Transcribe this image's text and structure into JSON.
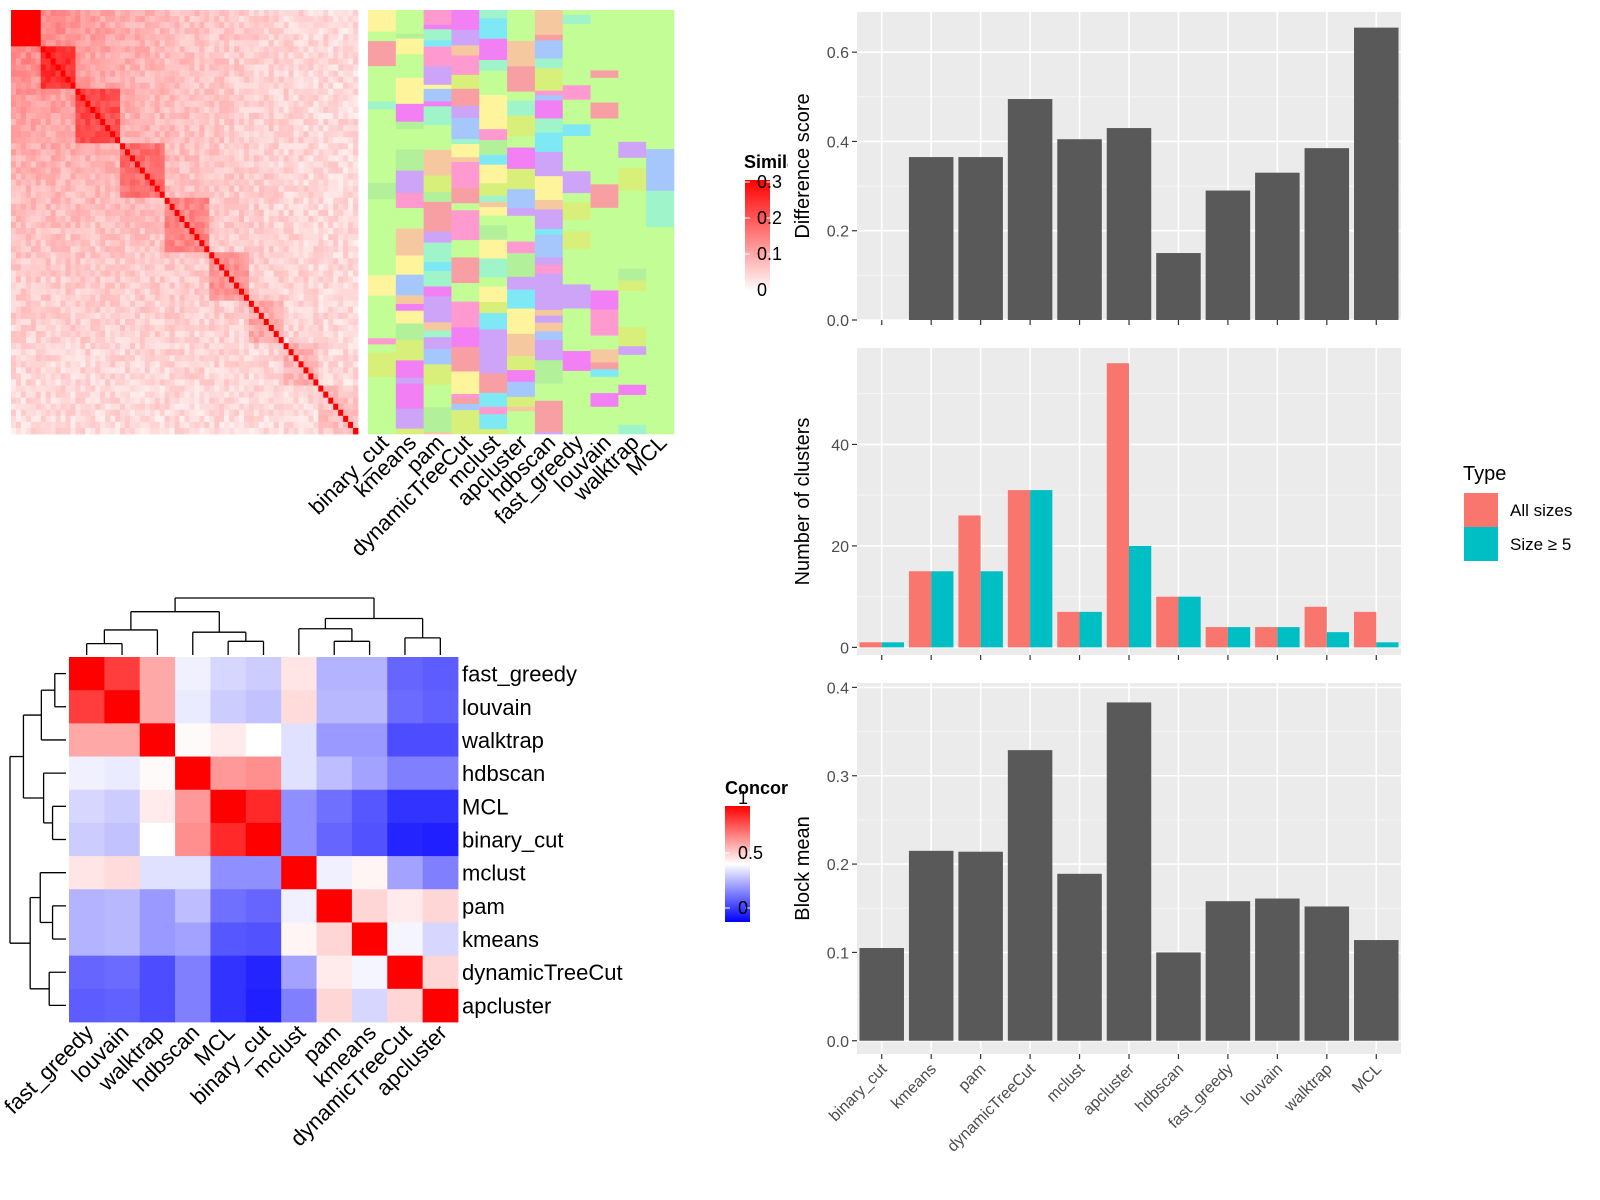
{
  "methods": [
    "binary_cut",
    "kmeans",
    "pam",
    "dynamicTreeCut",
    "mclust",
    "apcluster",
    "hdbscan",
    "fast_greedy",
    "louvain",
    "walktrap",
    "MCL"
  ],
  "similarity_legend": {
    "title": "Similarity",
    "ticks": [
      "0.3",
      "0.2",
      "0.1",
      "0"
    ]
  },
  "concordance_legend": {
    "title": "Concordance",
    "ticks": [
      "1",
      "0.5",
      "0"
    ]
  },
  "type_legend": {
    "title": "Type",
    "items": [
      "All sizes",
      "Size ≥ 5"
    ]
  },
  "colors": {
    "bar_grey": "#595959",
    "panel_bg": "#ebebeb",
    "all_sizes": "#f8766d",
    "size_ge5": "#00bfc4",
    "heat_high": "#ff0000",
    "heat_mid": "#ffffff",
    "heat_low": "#0000ff"
  },
  "chart_data": [
    {
      "type": "heatmap",
      "name": "similarity_matrix_with_cluster_labels",
      "legend_title": "Similarity",
      "range": [
        0,
        0.3
      ],
      "column_labels": [
        "binary_cut",
        "kmeans",
        "pam",
        "dynamicTreeCut",
        "mclust",
        "apcluster",
        "hdbscan",
        "fast_greedy",
        "louvain",
        "walktrap",
        "MCL"
      ]
    },
    {
      "type": "heatmap",
      "name": "concordance",
      "legend_title": "Concordance",
      "range": [
        0,
        1
      ],
      "row_labels": [
        "fast_greedy",
        "louvain",
        "walktrap",
        "hdbscan",
        "MCL",
        "binary_cut",
        "mclust",
        "pam",
        "kmeans",
        "dynamicTreeCut",
        "apcluster"
      ],
      "column_labels": [
        "fast_greedy",
        "louvain",
        "walktrap",
        "hdbscan",
        "MCL",
        "binary_cut",
        "mclust",
        "pam",
        "kmeans",
        "dynamicTreeCut",
        "apcluster"
      ],
      "values": [
        [
          1.0,
          0.88,
          0.67,
          0.47,
          0.42,
          0.4,
          0.55,
          0.35,
          0.35,
          0.2,
          0.18
        ],
        [
          0.88,
          1.0,
          0.67,
          0.46,
          0.4,
          0.38,
          0.57,
          0.36,
          0.36,
          0.21,
          0.19
        ],
        [
          0.67,
          0.67,
          1.0,
          0.51,
          0.54,
          0.5,
          0.44,
          0.3,
          0.3,
          0.15,
          0.15
        ],
        [
          0.47,
          0.46,
          0.51,
          1.0,
          0.7,
          0.72,
          0.44,
          0.37,
          0.32,
          0.25,
          0.25
        ],
        [
          0.42,
          0.4,
          0.54,
          0.7,
          1.0,
          0.92,
          0.28,
          0.22,
          0.17,
          0.1,
          0.1
        ],
        [
          0.4,
          0.38,
          0.5,
          0.72,
          0.92,
          1.0,
          0.28,
          0.2,
          0.16,
          0.07,
          0.06
        ],
        [
          0.55,
          0.57,
          0.44,
          0.44,
          0.28,
          0.28,
          1.0,
          0.47,
          0.52,
          0.32,
          0.25
        ],
        [
          0.35,
          0.36,
          0.3,
          0.37,
          0.22,
          0.2,
          0.47,
          1.0,
          0.58,
          0.54,
          0.58
        ],
        [
          0.35,
          0.36,
          0.3,
          0.32,
          0.17,
          0.16,
          0.52,
          0.58,
          1.0,
          0.48,
          0.42
        ],
        [
          0.2,
          0.21,
          0.15,
          0.25,
          0.1,
          0.07,
          0.32,
          0.54,
          0.48,
          1.0,
          0.58
        ],
        [
          0.18,
          0.19,
          0.15,
          0.25,
          0.1,
          0.06,
          0.25,
          0.58,
          0.42,
          0.58,
          1.0
        ]
      ]
    },
    {
      "type": "bar",
      "name": "difference_score",
      "categories": [
        "binary_cut",
        "kmeans",
        "pam",
        "dynamicTreeCut",
        "mclust",
        "apcluster",
        "hdbscan",
        "fast_greedy",
        "louvain",
        "walktrap",
        "MCL"
      ],
      "values": [
        0,
        0.365,
        0.365,
        0.495,
        0.405,
        0.43,
        0.15,
        0.29,
        0.33,
        0.385,
        0.655
      ],
      "ylabel": "Difference score",
      "ylim": [
        0,
        0.69
      ],
      "yticks": [
        0.0,
        0.2,
        0.4,
        0.6
      ],
      "grid": true
    },
    {
      "type": "bar",
      "name": "number_of_clusters",
      "categories": [
        "binary_cut",
        "kmeans",
        "pam",
        "dynamicTreeCut",
        "mclust",
        "apcluster",
        "hdbscan",
        "fast_greedy",
        "louvain",
        "walktrap",
        "MCL"
      ],
      "series": [
        {
          "name": "All sizes",
          "values": [
            1,
            15,
            26,
            31,
            7,
            56,
            10,
            4,
            4,
            8,
            7
          ]
        },
        {
          "name": "Size ≥ 5",
          "values": [
            1,
            15,
            15,
            31,
            7,
            20,
            10,
            4,
            4,
            3,
            1
          ]
        }
      ],
      "ylabel": "Number of clusters",
      "ylim": [
        -1.5,
        59
      ],
      "yticks": [
        0,
        20,
        40
      ],
      "legend": "right",
      "grid": true
    },
    {
      "type": "bar",
      "name": "block_mean",
      "categories": [
        "binary_cut",
        "kmeans",
        "pam",
        "dynamicTreeCut",
        "mclust",
        "apcluster",
        "hdbscan",
        "fast_greedy",
        "louvain",
        "walktrap",
        "MCL"
      ],
      "values": [
        0.105,
        0.215,
        0.214,
        0.329,
        0.189,
        0.383,
        0.1,
        0.158,
        0.161,
        0.152,
        0.114
      ],
      "ylabel": "Block mean",
      "ylim": [
        -0.015,
        0.405
      ],
      "yticks": [
        0.0,
        0.1,
        0.2,
        0.3,
        0.4
      ],
      "grid": true
    }
  ]
}
